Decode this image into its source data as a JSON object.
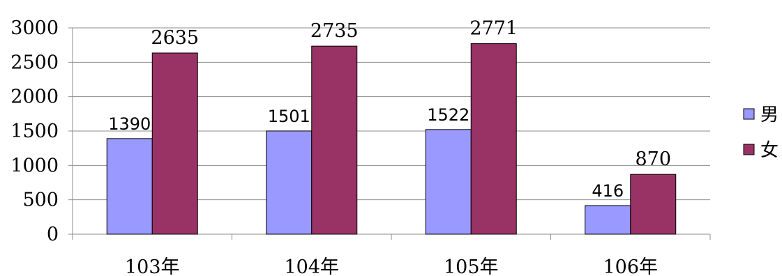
{
  "chart_data": {
    "type": "bar",
    "categories": [
      "103年",
      "104年",
      "105年",
      "106年"
    ],
    "series": [
      {
        "name": "男",
        "color": "#9999ff",
        "values": [
          1390,
          1501,
          1522,
          416
        ]
      },
      {
        "name": "女",
        "color": "#993366",
        "values": [
          2635,
          2735,
          2771,
          870
        ]
      }
    ],
    "ylim": [
      0,
      3000
    ],
    "yticks": [
      0,
      500,
      1000,
      1500,
      2000,
      2500,
      3000
    ],
    "grid": true,
    "legend": "right",
    "data_labels": true
  }
}
